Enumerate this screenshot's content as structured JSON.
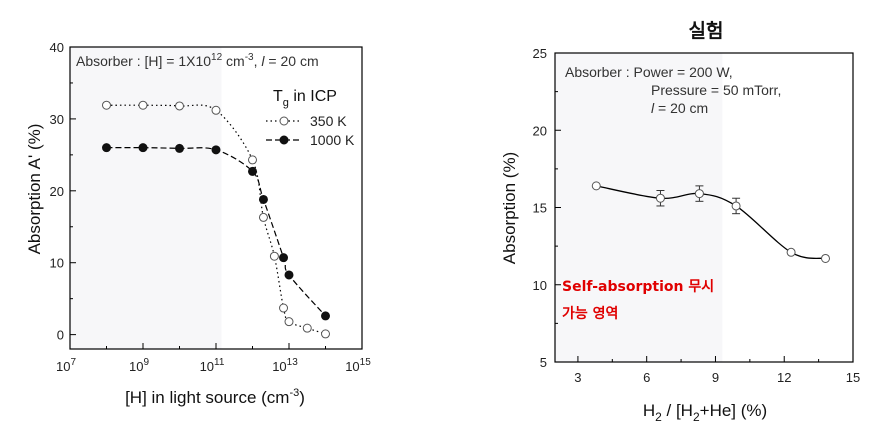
{
  "chart_data": [
    {
      "type": "scatter",
      "title": "",
      "xlabel": "[H] in light source (cm",
      "xlabel_sup": "-3",
      "xlabel_end": ")",
      "ylabel": "Absorption A' (%)",
      "xscale": "log",
      "xlim": [
        10000000.0,
        1000000000000000.0
      ],
      "ylim": [
        -2,
        40
      ],
      "xticks": [
        {
          "base": "10",
          "exp": "7"
        },
        {
          "base": "10",
          "exp": "9"
        },
        {
          "base": "10",
          "exp": "11"
        },
        {
          "base": "10",
          "exp": "13"
        },
        {
          "base": "10",
          "exp": "15"
        }
      ],
      "xtick_values": [
        7,
        9,
        11,
        13,
        15
      ],
      "yticks": [
        "0",
        "10",
        "20",
        "30",
        "40"
      ],
      "ytick_values": [
        0,
        10,
        20,
        30,
        40
      ],
      "annotation": {
        "pre": "Absorber : [H] = 1X10",
        "sup": "12",
        "mid": " cm",
        "sup2": "-3",
        "post": ", ",
        "l": "l",
        "tail": " = 20 cm"
      },
      "legend_title_main": "T",
      "legend_title_sub": "g",
      "legend_title_rest": " in ICP",
      "legend_position": "upper-right",
      "series": [
        {
          "name": "350 K",
          "marker": "open-circle",
          "line": "dotted",
          "log10_x": [
            8,
            9,
            10,
            11,
            12,
            12.3,
            12.6,
            12.85,
            13,
            13.5,
            14
          ],
          "y": [
            31.9,
            31.9,
            31.8,
            31.2,
            24.3,
            16.3,
            10.9,
            3.7,
            1.8,
            0.9,
            0.1
          ]
        },
        {
          "name": "1000 K",
          "marker": "filled-circle",
          "line": "dashed",
          "log10_x": [
            8,
            9,
            10,
            11,
            12,
            12.3,
            12.85,
            13,
            14
          ],
          "y": [
            26,
            26,
            25.9,
            25.7,
            22.7,
            18.8,
            10.7,
            8.3,
            2.6
          ]
        }
      ],
      "shaded_region_log10_x": [
        7,
        11.15
      ]
    },
    {
      "type": "line",
      "title": "실험",
      "xlabel_pre": "H",
      "xlabel_sub1": "2",
      "xlabel_mid": " / [H",
      "xlabel_sub2": "2",
      "xlabel_post": "+He] (%)",
      "ylabel": "Absorption (%)",
      "xlim": [
        2,
        15
      ],
      "ylim": [
        5,
        25
      ],
      "xticks": [
        "3",
        "6",
        "9",
        "12",
        "15"
      ],
      "xtick_values": [
        3,
        6,
        9,
        12,
        15
      ],
      "yticks": [
        "5",
        "10",
        "15",
        "20",
        "25"
      ],
      "ytick_values": [
        5,
        10,
        15,
        20,
        25
      ],
      "annotation_line1": "Absorber : Power = 200 W,",
      "annotation_line2": "Pressure = 50 mTorr,",
      "annotation_line3_l": "l",
      "annotation_line3_rest": " = 20 cm",
      "korean_line1": "Self-absorption 무시",
      "korean_line2": "가능 영역",
      "shaded_region_x": [
        2,
        9.3
      ],
      "series": [
        {
          "name": "Absorption",
          "marker": "open-circle",
          "x": [
            3.8,
            6.6,
            8.3,
            9.9,
            12.3,
            13.8
          ],
          "y": [
            16.4,
            15.6,
            15.9,
            15.1,
            12.1,
            11.7
          ],
          "err": [
            0,
            0.5,
            0.5,
            0.5,
            0,
            0
          ]
        }
      ]
    }
  ]
}
